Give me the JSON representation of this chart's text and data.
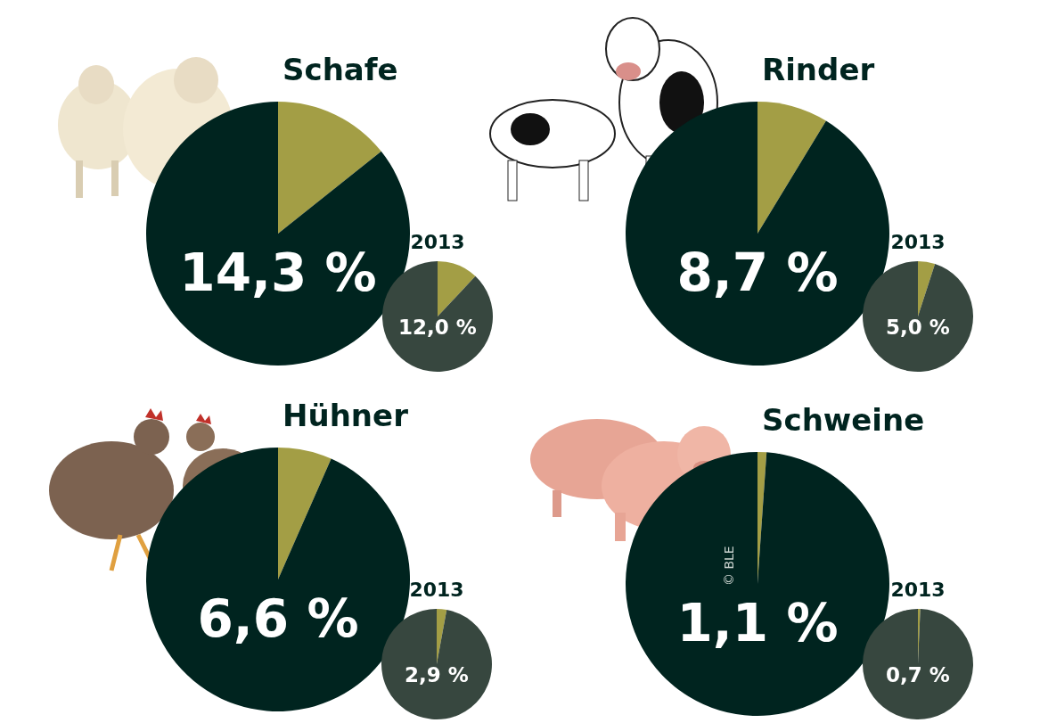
{
  "chart_data": [
    {
      "type": "pie",
      "title": "Schafe",
      "categories": [
        null,
        null
      ],
      "values": [
        14.3,
        85.7
      ],
      "colors": [
        "#a39e45",
        "#00241f"
      ],
      "annotations": [
        "14,3 %"
      ]
    },
    {
      "type": "pie",
      "title": "2013",
      "categories": [
        null,
        null
      ],
      "values": [
        12,
        88
      ],
      "colors": [
        "#a39e45",
        "#37473f"
      ],
      "annotations": [
        "12,0 %"
      ]
    },
    {
      "type": "pie",
      "title": "Rinder",
      "categories": [
        null,
        null
      ],
      "values": [
        8.7,
        91.3
      ],
      "colors": [
        "#a39e45",
        "#00241f"
      ],
      "annotations": [
        "8,7 %"
      ]
    },
    {
      "type": "pie",
      "title": "2013",
      "categories": [
        null,
        null
      ],
      "values": [
        5,
        95
      ],
      "colors": [
        "#a39e45",
        "#37473f"
      ],
      "annotations": [
        "5,0 %"
      ]
    },
    {
      "type": "pie",
      "title": "Hühner",
      "categories": [
        null,
        null
      ],
      "values": [
        6.6,
        93.4
      ],
      "colors": [
        "#a39e45",
        "#00241f"
      ],
      "annotations": [
        "6,6 %"
      ]
    },
    {
      "type": "pie",
      "title": "2013",
      "categories": [
        null,
        null
      ],
      "values": [
        2.9,
        97.1
      ],
      "colors": [
        "#a39e45",
        "#37473f"
      ],
      "annotations": [
        "2,9 %"
      ]
    },
    {
      "type": "pie",
      "title": "Schweine",
      "categories": [
        null,
        null
      ],
      "values": [
        1.1,
        98.9
      ],
      "colors": [
        "#a39e45",
        "#00241f"
      ],
      "annotations": [
        "1,1 %",
        "© BLE"
      ]
    },
    {
      "type": "pie",
      "title": "2013",
      "categories": [
        null,
        null
      ],
      "values": [
        0.7,
        99.3
      ],
      "colors": [
        "#a39e45",
        "#37473f"
      ],
      "annotations": [
        "0,7 %"
      ]
    }
  ]
}
